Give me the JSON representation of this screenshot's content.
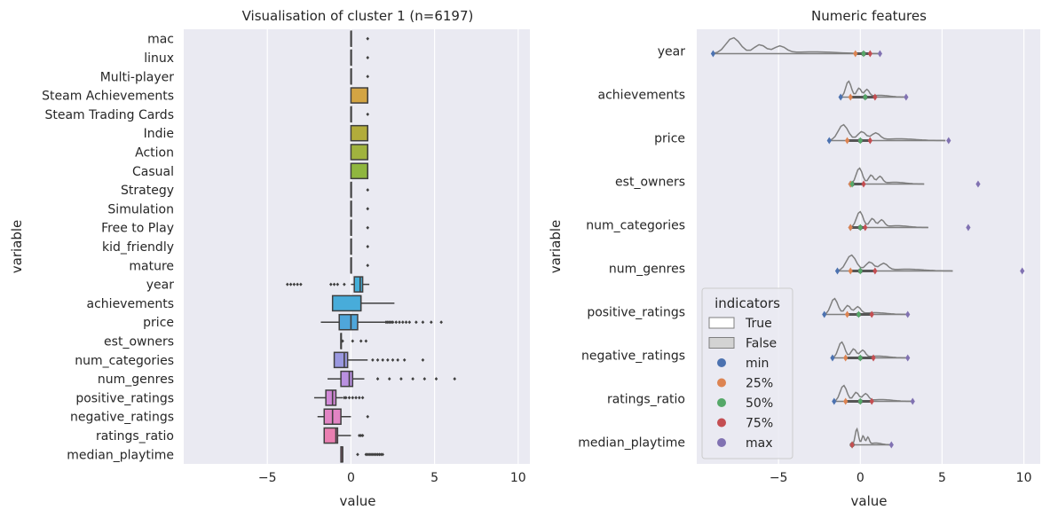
{
  "chart_data": [
    {
      "type": "boxplot",
      "title": "Visualisation of cluster 1 (n=6197)",
      "xlabel": "value",
      "ylabel": "variable",
      "xlim": [
        -10,
        10.7
      ],
      "xticks": [
        -5,
        0,
        5,
        10
      ],
      "xtick_labels": [
        "−5",
        "0",
        "5",
        "10"
      ],
      "grid": true,
      "categories": [
        "mac",
        "linux",
        "Multi-player",
        "Steam Achievements",
        "Steam Trading Cards",
        "Indie",
        "Action",
        "Casual",
        "Strategy",
        "Simulation",
        "Free to Play",
        "kid_friendly",
        "mature",
        "year",
        "achievements",
        "price",
        "est_owners",
        "num_categories",
        "num_genres",
        "positive_ratings",
        "negative_ratings",
        "ratings_ratio",
        "median_playtime"
      ],
      "colors": [
        "#e8a0a9",
        "#eaa17a",
        "#e9a667",
        "#d3a443",
        "#c4a83a",
        "#b2ac3b",
        "#a0b33e",
        "#8fb63f",
        "#6bb84f",
        "#4cb89a",
        "#4bb7b3",
        "#49b5c2",
        "#47b3cf",
        "#45b0d9",
        "#48acda",
        "#4fa6da",
        "#789fdb",
        "#9a98e0",
        "#b990e0",
        "#d289d8",
        "#e284c4",
        "#ea7fb1",
        "#ee7ca6"
      ],
      "boxes": [
        {
          "q1": 0,
          "median": 0,
          "q3": 0,
          "wlo": 0,
          "whi": 0,
          "fliers": [
            1
          ]
        },
        {
          "q1": 0,
          "median": 0,
          "q3": 0,
          "wlo": 0,
          "whi": 0,
          "fliers": [
            1
          ]
        },
        {
          "q1": 0,
          "median": 0,
          "q3": 0,
          "wlo": 0,
          "whi": 0,
          "fliers": [
            1
          ]
        },
        {
          "q1": 0,
          "median": 1,
          "q3": 1,
          "wlo": 0,
          "whi": 1,
          "fliers": []
        },
        {
          "q1": 0,
          "median": 0,
          "q3": 0,
          "wlo": 0,
          "whi": 0,
          "fliers": [
            1
          ]
        },
        {
          "q1": 0,
          "median": 1,
          "q3": 1,
          "wlo": 0,
          "whi": 1,
          "fliers": []
        },
        {
          "q1": 0,
          "median": 1,
          "q3": 1,
          "wlo": 0,
          "whi": 1,
          "fliers": []
        },
        {
          "q1": 0,
          "median": 1,
          "q3": 1,
          "wlo": 0,
          "whi": 1,
          "fliers": []
        },
        {
          "q1": 0,
          "median": 0,
          "q3": 0,
          "wlo": 0,
          "whi": 0,
          "fliers": [
            1
          ]
        },
        {
          "q1": 0,
          "median": 0,
          "q3": 0,
          "wlo": 0,
          "whi": 0,
          "fliers": [
            1
          ]
        },
        {
          "q1": 0,
          "median": 0,
          "q3": 0,
          "wlo": 0,
          "whi": 0,
          "fliers": [
            1
          ]
        },
        {
          "q1": 0,
          "median": 0,
          "q3": 0,
          "wlo": 0,
          "whi": 0,
          "fliers": [
            1
          ]
        },
        {
          "q1": 0,
          "median": 0,
          "q3": 0,
          "wlo": 0,
          "whi": 0,
          "fliers": [
            1
          ]
        },
        {
          "q1": 0.2,
          "median": 0.55,
          "q3": 0.7,
          "wlo": 0.0,
          "whi": 1.1,
          "fliers": [
            -3.8,
            -3.6,
            -3.4,
            -3.2,
            -3.0,
            -1.2,
            -1.0,
            -0.8,
            -0.4
          ]
        },
        {
          "q1": -1.1,
          "median": 0.6,
          "q3": 0.6,
          "wlo": -1.1,
          "whi": 2.6,
          "fliers": []
        },
        {
          "q1": -0.7,
          "median": 0,
          "q3": 0.4,
          "wlo": -1.8,
          "whi": 2.1,
          "fliers": [
            2.1,
            2.2,
            2.3,
            2.4,
            2.5,
            2.7,
            2.9,
            3.1,
            3.3,
            3.5,
            3.9,
            4.3,
            4.8,
            5.4
          ]
        },
        {
          "q1": -0.6,
          "median": -0.6,
          "q3": -0.6,
          "wlo": -0.6,
          "whi": -0.6,
          "fliers": [
            -0.5,
            0.1,
            0.6,
            0.9
          ]
        },
        {
          "q1": -1.0,
          "median": -0.4,
          "q3": -0.2,
          "wlo": -1.0,
          "whi": 1.0,
          "fliers": [
            1.3,
            1.6,
            1.9,
            2.2,
            2.5,
            2.8,
            3.2,
            4.3
          ]
        },
        {
          "q1": -0.6,
          "median": -0.1,
          "q3": 0.1,
          "wlo": -1.4,
          "whi": 0.8,
          "fliers": [
            1.6,
            2.3,
            3.0,
            3.7,
            4.4,
            5.1,
            6.2
          ]
        },
        {
          "q1": -1.5,
          "median": -1.1,
          "q3": -0.9,
          "wlo": -2.2,
          "whi": -0.5,
          "fliers": [
            -0.4,
            -0.3,
            -0.1,
            0.1,
            0.3,
            0.5,
            0.7
          ]
        },
        {
          "q1": -1.6,
          "median": -1.1,
          "q3": -0.6,
          "wlo": -2.0,
          "whi": 0.0,
          "fliers": [
            1.0
          ]
        },
        {
          "q1": -1.6,
          "median": -0.9,
          "q3": -0.8,
          "wlo": -1.6,
          "whi": 0.0,
          "fliers": [
            0.5,
            0.6,
            0.7
          ]
        },
        {
          "q1": -0.6,
          "median": -0.5,
          "q3": -0.5,
          "wlo": -0.6,
          "whi": -0.5,
          "fliers": [
            0.4,
            0.9,
            1.0,
            1.1,
            1.2,
            1.3,
            1.4,
            1.5,
            1.6,
            1.7,
            1.8,
            1.9
          ]
        }
      ]
    },
    {
      "type": "violin",
      "title": "Numeric features",
      "xlabel": "value",
      "ylabel": "variable",
      "xlim": [
        -10,
        11
      ],
      "xticks": [
        -5,
        0,
        5,
        10
      ],
      "xtick_labels": [
        "−5",
        "0",
        "5",
        "10"
      ],
      "grid": true,
      "categories": [
        "year",
        "achievements",
        "price",
        "est_owners",
        "num_categories",
        "num_genres",
        "positive_ratings",
        "negative_ratings",
        "ratings_ratio",
        "median_playtime"
      ],
      "series": [
        {
          "name": "min",
          "color": "#4c72b0",
          "values": [
            -9.0,
            -1.2,
            -1.9,
            -0.6,
            -0.6,
            -1.4,
            -2.2,
            -1.7,
            -1.6,
            -0.5
          ]
        },
        {
          "name": "25%",
          "color": "#dd8452",
          "values": [
            -0.3,
            -0.6,
            -0.8,
            -0.6,
            -0.6,
            -0.6,
            -0.8,
            -0.9,
            -0.9,
            -0.5
          ]
        },
        {
          "name": "50%",
          "color": "#55a868",
          "values": [
            0.2,
            0.3,
            0.0,
            -0.5,
            0.0,
            0.0,
            -0.1,
            0.0,
            0.0,
            -0.5
          ]
        },
        {
          "name": "75%",
          "color": "#c44e52",
          "values": [
            0.6,
            0.9,
            0.6,
            0.2,
            0.3,
            0.9,
            0.7,
            0.8,
            0.7,
            -0.5
          ]
        },
        {
          "name": "max",
          "color": "#8172b2",
          "values": [
            1.2,
            2.8,
            5.4,
            7.2,
            6.6,
            9.9,
            2.9,
            2.9,
            3.2,
            1.9
          ]
        }
      ],
      "legend": {
        "title": "indicators",
        "placement": "lower-left",
        "entries": [
          {
            "label": "True",
            "kind": "patch",
            "color": "#ffffff"
          },
          {
            "label": "False",
            "kind": "patch",
            "color": "#d3d3d3"
          },
          {
            "label": "min",
            "kind": "dot",
            "color": "#4c72b0"
          },
          {
            "label": "25%",
            "kind": "dot",
            "color": "#dd8452"
          },
          {
            "label": "50%",
            "kind": "dot",
            "color": "#55a868"
          },
          {
            "label": "75%",
            "kind": "dot",
            "color": "#c44e52"
          },
          {
            "label": "max",
            "kind": "dot",
            "color": "#8172b2"
          }
        ]
      }
    }
  ]
}
